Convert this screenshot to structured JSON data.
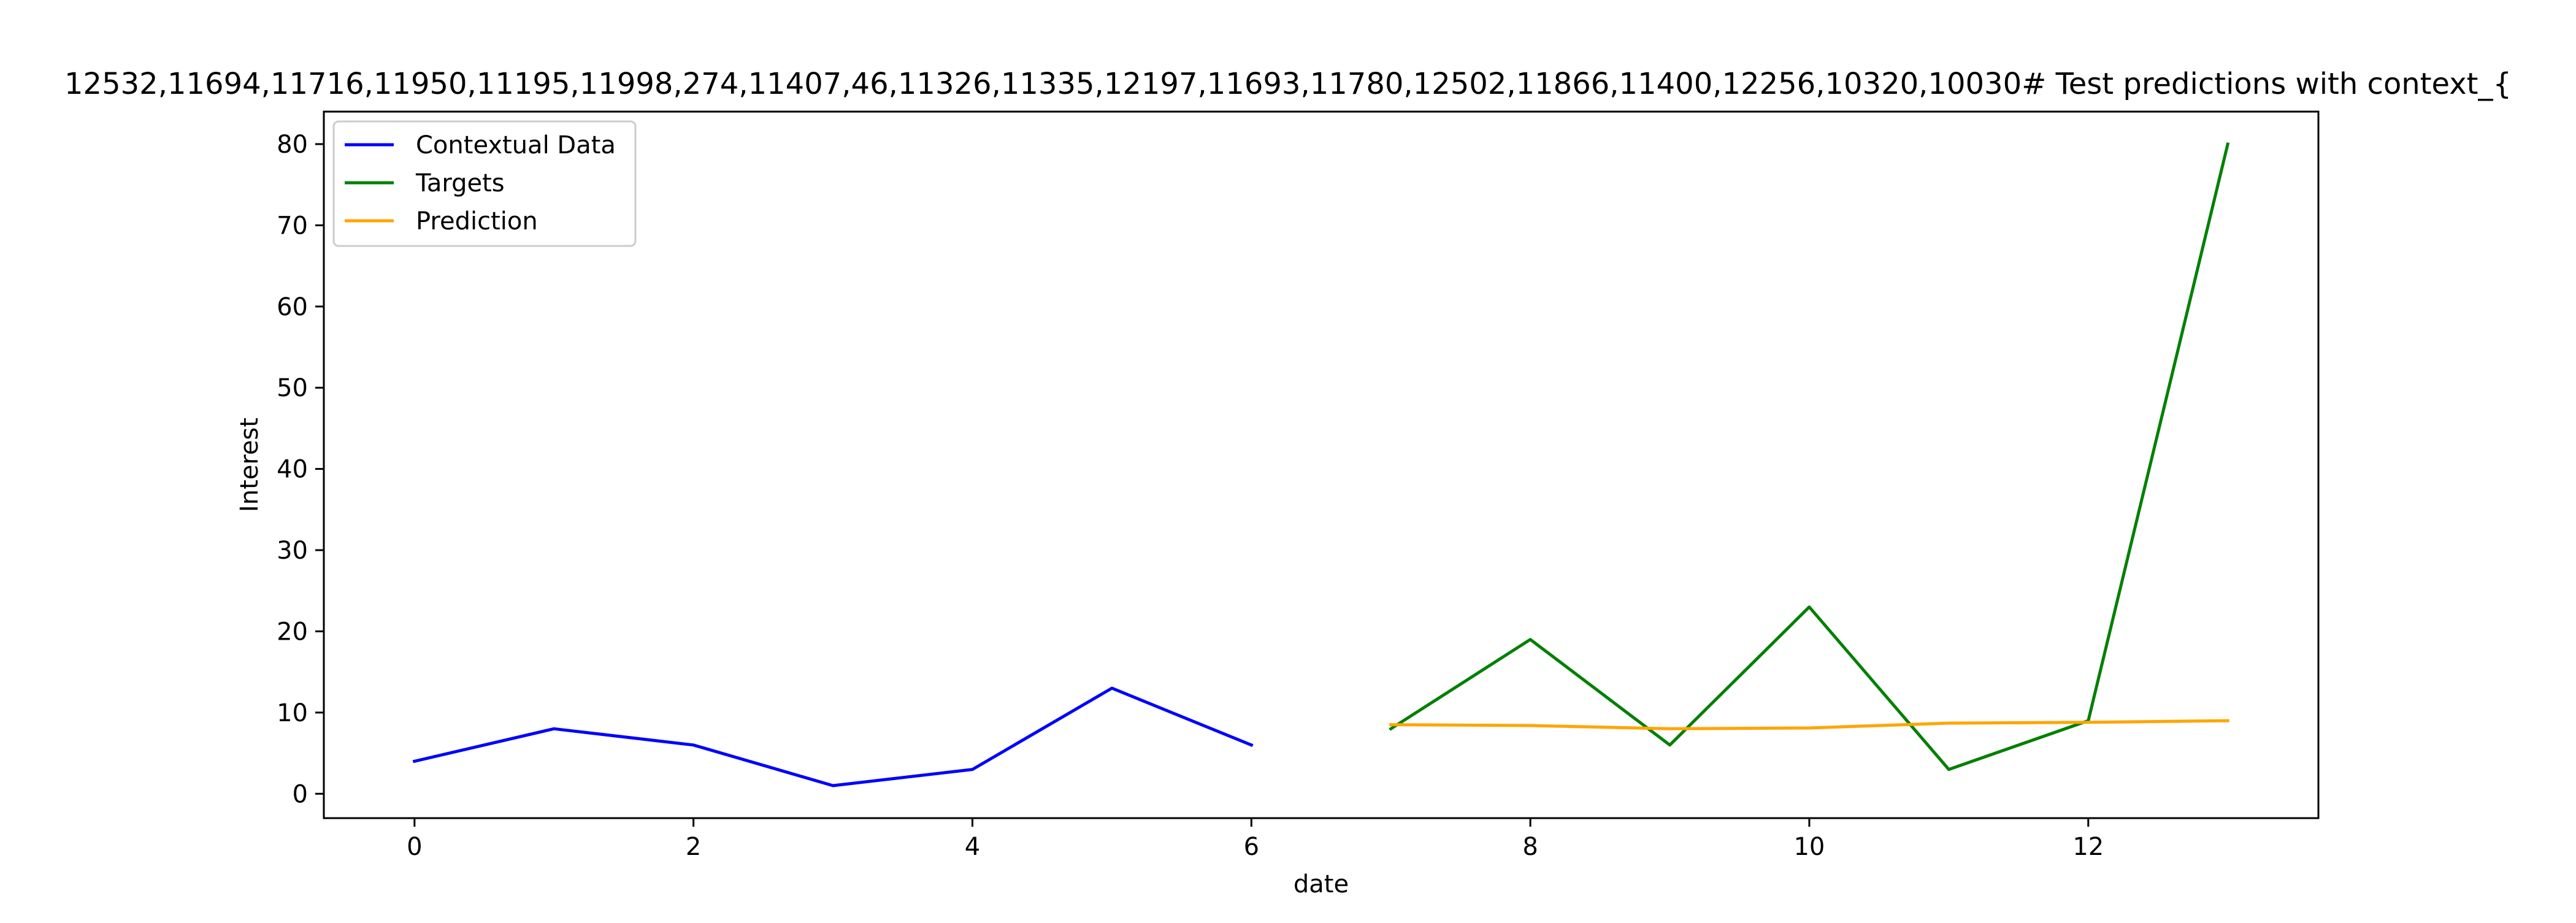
{
  "chart_data": {
    "type": "line",
    "title": "12532,11694,11716,11950,11195,11998,274,11407,46,11326,11335,12197,11693,11780,12502,11866,11400,12256,10320,10030# Test predictions with context_{",
    "xlabel": "date",
    "ylabel": "Interest",
    "xlim": [
      -0.65,
      13.65
    ],
    "ylim": [
      -3,
      84
    ],
    "xticks": [
      0,
      2,
      4,
      6,
      8,
      10,
      12
    ],
    "yticks": [
      0,
      10,
      20,
      30,
      40,
      50,
      60,
      70,
      80
    ],
    "grid": false,
    "legend_position": "upper left",
    "series": [
      {
        "name": "Contextual Data",
        "color": "#0000ff",
        "x": [
          0,
          1,
          2,
          3,
          4,
          5,
          6
        ],
        "values": [
          4,
          8,
          6,
          1,
          3,
          13,
          6
        ]
      },
      {
        "name": "Targets",
        "color": "#008000",
        "x": [
          7,
          8,
          9,
          10,
          11,
          12,
          13
        ],
        "values": [
          8,
          19,
          6,
          23,
          3,
          9,
          80
        ]
      },
      {
        "name": "Prediction",
        "color": "#ffa500",
        "x": [
          7,
          8,
          9,
          10,
          11,
          12,
          13
        ],
        "values": [
          8.5,
          8.4,
          8.0,
          8.1,
          8.7,
          8.8,
          9.0
        ]
      }
    ]
  }
}
